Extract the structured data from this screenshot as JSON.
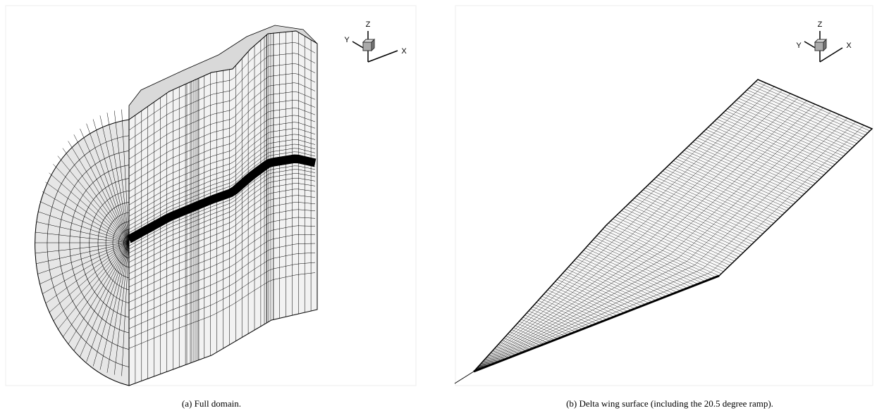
{
  "figure": {
    "panels": [
      {
        "caption": "(a) Full domain.",
        "axes": {
          "x": "X",
          "y": "Y",
          "z": "Z"
        }
      },
      {
        "caption": "(b) Delta wing surface (including the 20.5 degree ramp).",
        "axes": {
          "x": "X",
          "y": "Y",
          "z": "Z"
        }
      }
    ]
  }
}
